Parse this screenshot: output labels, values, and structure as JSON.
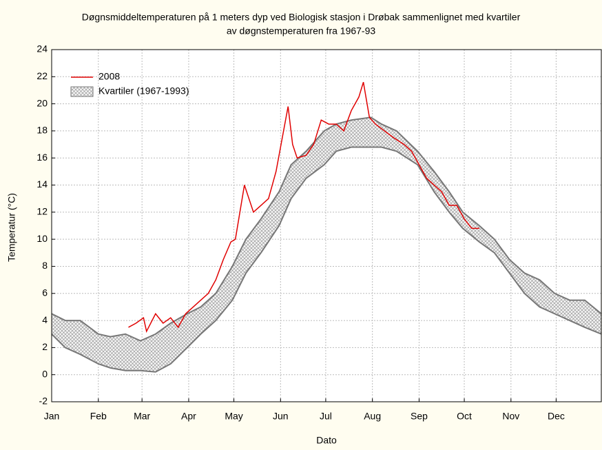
{
  "chart_data": {
    "type": "line",
    "title": [
      "Døgnsmiddeltemperaturen på 1 meters dyp ved Biologisk stasjon i Drøbak sammenlignet med kvartiler",
      "av døgnstemperaturen fra 1967-93"
    ],
    "xlabel": "Dato",
    "ylabel": "Temperatur (°C)",
    "xlim": [
      1,
      366
    ],
    "ylim": [
      -2,
      24
    ],
    "xticks": [
      {
        "value": 1,
        "label": "Jan"
      },
      {
        "value": 32,
        "label": "Feb"
      },
      {
        "value": 61,
        "label": "Mar"
      },
      {
        "value": 92,
        "label": "Apr"
      },
      {
        "value": 122,
        "label": "May"
      },
      {
        "value": 153,
        "label": "Jun"
      },
      {
        "value": 183,
        "label": "Jul"
      },
      {
        "value": 214,
        "label": "Aug"
      },
      {
        "value": 245,
        "label": "Sep"
      },
      {
        "value": 275,
        "label": "Oct"
      },
      {
        "value": 306,
        "label": "Nov"
      },
      {
        "value": 336,
        "label": "Dec"
      }
    ],
    "yticks": [
      -2,
      0,
      2,
      4,
      6,
      8,
      10,
      12,
      14,
      16,
      18,
      20,
      22,
      24
    ],
    "grid": true,
    "legend": "upper left",
    "series": [
      {
        "name": "2008",
        "color": "#e00000",
        "x": [
          52,
          57,
          62,
          64,
          70,
          75,
          80,
          85,
          90,
          95,
          100,
          105,
          110,
          115,
          120,
          123,
          126,
          129,
          132,
          135,
          140,
          145,
          150,
          155,
          158,
          161,
          164,
          170,
          175,
          180,
          185,
          190,
          195,
          200,
          205,
          208,
          212,
          216,
          222,
          228,
          235,
          240,
          245,
          250,
          255,
          260,
          265,
          270,
          275,
          280,
          285
        ],
        "values": [
          3.5,
          3.8,
          4.2,
          3.2,
          4.5,
          3.8,
          4.2,
          3.5,
          4.5,
          5.0,
          5.5,
          6.0,
          7.0,
          8.5,
          9.8,
          10.0,
          12.0,
          14.0,
          13.0,
          12.0,
          12.5,
          13.0,
          15.0,
          18.0,
          19.8,
          17.0,
          16.0,
          16.2,
          17.0,
          18.8,
          18.5,
          18.5,
          18.0,
          19.5,
          20.5,
          21.6,
          19.0,
          18.5,
          18.0,
          17.5,
          17.0,
          16.5,
          15.5,
          14.5,
          14.0,
          13.5,
          12.5,
          12.5,
          11.5,
          10.8,
          10.8
        ]
      }
    ],
    "band": {
      "name": "Kvartiler (1967-1993)",
      "color": "#777777",
      "x": [
        1,
        10,
        20,
        32,
        40,
        50,
        60,
        70,
        80,
        91,
        100,
        110,
        121,
        130,
        140,
        152,
        160,
        170,
        182,
        190,
        200,
        213,
        220,
        230,
        244,
        255,
        265,
        274,
        285,
        295,
        305,
        315,
        325,
        335,
        345,
        355,
        366
      ],
      "upper": [
        4.5,
        4.0,
        4.0,
        3.0,
        2.8,
        3.0,
        2.5,
        3.0,
        3.8,
        4.5,
        5.0,
        6.0,
        8.0,
        10.0,
        11.5,
        13.5,
        15.5,
        16.5,
        18.0,
        18.5,
        18.8,
        19.0,
        18.5,
        18.0,
        16.5,
        15.0,
        13.5,
        12.0,
        11.0,
        10.0,
        8.5,
        7.5,
        7.0,
        6.0,
        5.5,
        5.5,
        4.5
      ],
      "lower": [
        3.0,
        2.0,
        1.5,
        0.8,
        0.5,
        0.3,
        0.3,
        0.2,
        0.8,
        2.0,
        3.0,
        4.0,
        5.5,
        7.5,
        9.0,
        11.0,
        13.0,
        14.5,
        15.5,
        16.5,
        16.8,
        16.8,
        16.8,
        16.5,
        15.5,
        13.5,
        12.0,
        10.8,
        9.8,
        9.0,
        7.5,
        6.0,
        5.0,
        4.5,
        4.0,
        3.5,
        3.0
      ]
    }
  }
}
